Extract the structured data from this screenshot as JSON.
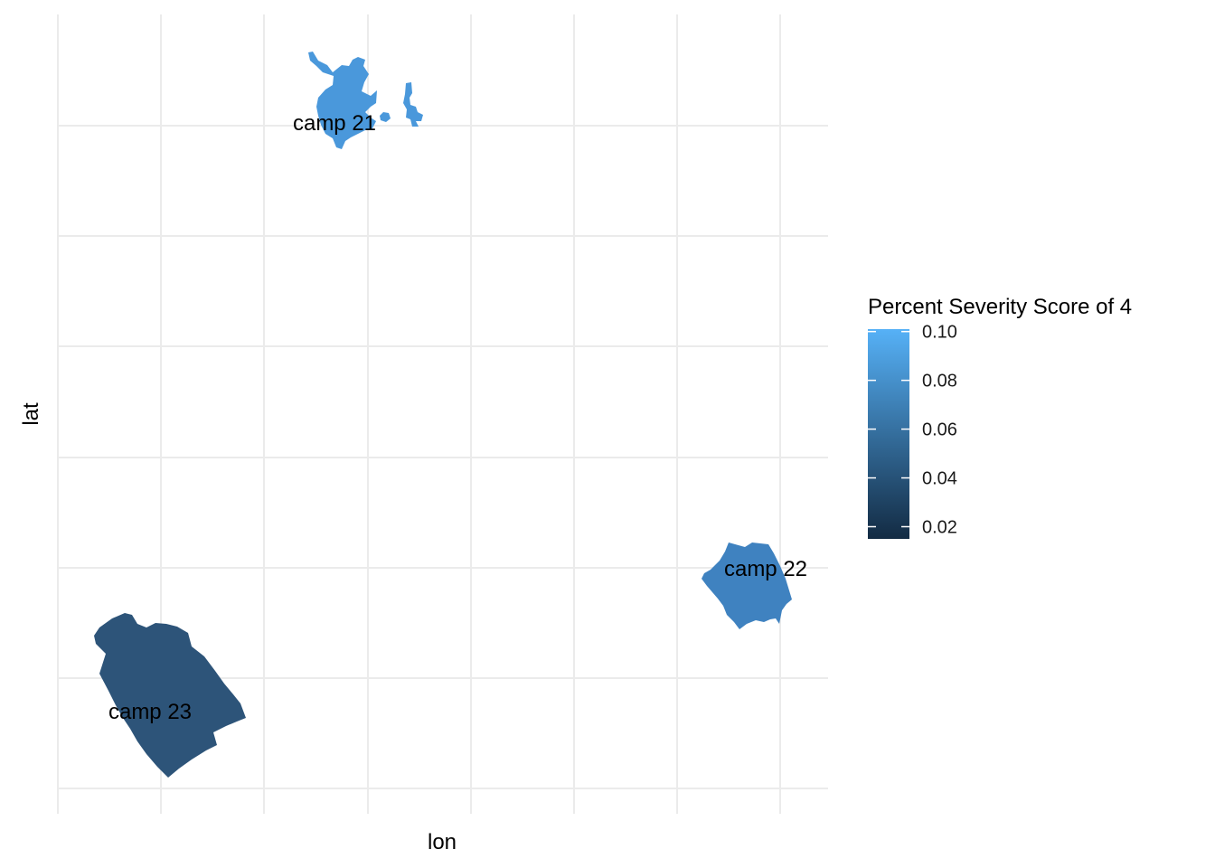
{
  "map": {
    "x_axis_label": "lon",
    "y_axis_label": "lat",
    "grid": true
  },
  "legend": {
    "title": "Percent Severity Score of 4",
    "position": "right",
    "ticks": [
      "0.10",
      "0.08",
      "0.06",
      "0.04",
      "0.02"
    ],
    "color_low": "#132B43",
    "color_high": "#56B1F7",
    "range": [
      0.015,
      0.101
    ]
  },
  "regions": [
    {
      "label": "camp 21",
      "value": 0.092,
      "fill": "#4A98DB"
    },
    {
      "label": "camp 22",
      "value": 0.076,
      "fill": "#3F82C0"
    },
    {
      "label": "camp 23",
      "value": 0.048,
      "fill": "#2D5479"
    }
  ]
}
